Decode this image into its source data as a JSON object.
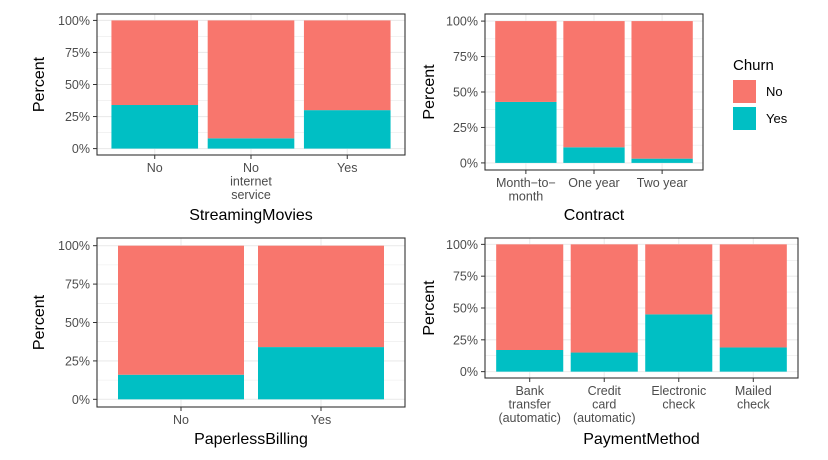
{
  "legend": {
    "title": "Churn",
    "items": [
      {
        "label": "No",
        "color": "#F8766D"
      },
      {
        "label": "Yes",
        "color": "#00BFC4"
      }
    ]
  },
  "colors": {
    "No": "#F8766D",
    "Yes": "#00BFC4",
    "grid": "#ebebeb",
    "panel_border": "#333333"
  },
  "chart_data": [
    {
      "type": "bar",
      "stacked": "percent",
      "title": "",
      "xlabel": "StreamingMovies",
      "ylabel": "Percent",
      "categories": [
        "No",
        "No\ninternet\nservice",
        "Yes"
      ],
      "series": [
        {
          "name": "No",
          "values": [
            66,
            92,
            70
          ]
        },
        {
          "name": "Yes",
          "values": [
            34,
            8,
            30
          ]
        }
      ],
      "ylim": [
        0,
        100
      ],
      "yticks": [
        "0%",
        "25%",
        "50%",
        "75%",
        "100%"
      ],
      "grid": true
    },
    {
      "type": "bar",
      "stacked": "percent",
      "title": "",
      "xlabel": "Contract",
      "ylabel": "Percent",
      "categories": [
        "Month−to−\nmonth",
        "One year",
        "Two year"
      ],
      "series": [
        {
          "name": "No",
          "values": [
            57,
            89,
            97
          ]
        },
        {
          "name": "Yes",
          "values": [
            43,
            11,
            3
          ]
        }
      ],
      "ylim": [
        0,
        100
      ],
      "yticks": [
        "0%",
        "25%",
        "50%",
        "75%",
        "100%"
      ],
      "grid": true
    },
    {
      "type": "bar",
      "stacked": "percent",
      "title": "",
      "xlabel": "PaperlessBilling",
      "ylabel": "Percent",
      "categories": [
        "No",
        "Yes"
      ],
      "series": [
        {
          "name": "No",
          "values": [
            84,
            66
          ]
        },
        {
          "name": "Yes",
          "values": [
            16,
            34
          ]
        }
      ],
      "ylim": [
        0,
        100
      ],
      "yticks": [
        "0%",
        "25%",
        "50%",
        "75%",
        "100%"
      ],
      "grid": true
    },
    {
      "type": "bar",
      "stacked": "percent",
      "title": "",
      "xlabel": "PaymentMethod",
      "ylabel": "Percent",
      "categories": [
        "Bank\ntransfer\n(automatic)",
        "Credit\ncard\n(automatic)",
        "Electronic\ncheck",
        "Mailed\ncheck"
      ],
      "series": [
        {
          "name": "No",
          "values": [
            83,
            85,
            55,
            81
          ]
        },
        {
          "name": "Yes",
          "values": [
            17,
            15,
            45,
            19
          ]
        }
      ],
      "ylim": [
        0,
        100
      ],
      "yticks": [
        "0%",
        "25%",
        "50%",
        "75%",
        "100%"
      ],
      "grid": true
    }
  ]
}
